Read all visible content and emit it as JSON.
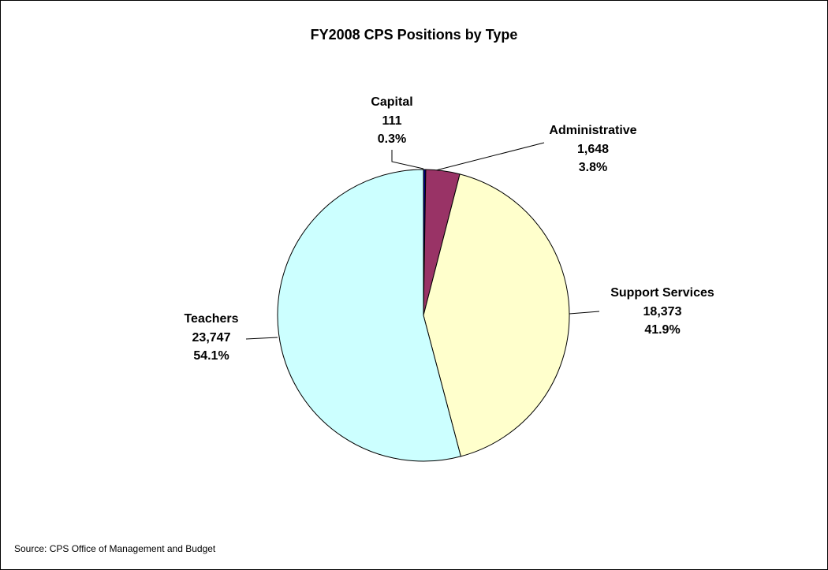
{
  "chart_data": {
    "type": "pie",
    "title": "FY2008 CPS Positions by Type",
    "categories": [
      "Capital",
      "Administrative",
      "Support Services",
      "Teachers"
    ],
    "values": [
      111,
      1648,
      18373,
      23747
    ],
    "value_labels": [
      "111",
      "1,648",
      "18,373",
      "23,747"
    ],
    "percent_labels": [
      "0.3%",
      "3.8%",
      "41.9%",
      "54.1%"
    ],
    "colors": [
      "#000080",
      "#993366",
      "#ffffcc",
      "#ccffff"
    ],
    "source": "Source:  CPS Office of Management and Budget"
  }
}
